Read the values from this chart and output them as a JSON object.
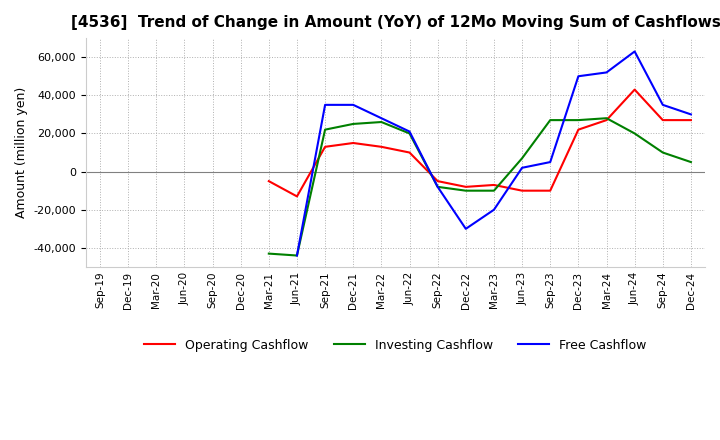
{
  "title": "[4536]  Trend of Change in Amount (YoY) of 12Mo Moving Sum of Cashflows",
  "ylabel": "Amount (million yen)",
  "ylim": [
    -50000,
    70000
  ],
  "yticks": [
    -40000,
    -20000,
    0,
    20000,
    40000,
    60000
  ],
  "x_labels": [
    "Sep-19",
    "Dec-19",
    "Mar-20",
    "Jun-20",
    "Sep-20",
    "Dec-20",
    "Mar-21",
    "Jun-21",
    "Sep-21",
    "Dec-21",
    "Mar-22",
    "Jun-22",
    "Sep-22",
    "Dec-22",
    "Mar-23",
    "Jun-23",
    "Sep-23",
    "Dec-23",
    "Mar-24",
    "Jun-24",
    "Sep-24",
    "Dec-24"
  ],
  "operating": [
    null,
    null,
    null,
    null,
    null,
    null,
    -5000,
    -13000,
    13000,
    15000,
    13000,
    10000,
    -5000,
    -8000,
    -7000,
    -10000,
    -10000,
    22000,
    27000,
    43000,
    27000,
    27000
  ],
  "investing": [
    null,
    null,
    null,
    null,
    null,
    null,
    -43000,
    -44000,
    22000,
    25000,
    26000,
    20000,
    -8000,
    -10000,
    -10000,
    7000,
    27000,
    27000,
    28000,
    20000,
    10000,
    5000
  ],
  "free": [
    null,
    null,
    null,
    null,
    null,
    null,
    null,
    -44000,
    35000,
    35000,
    28000,
    21000,
    -8000,
    -30000,
    -20000,
    2000,
    5000,
    50000,
    52000,
    63000,
    35000,
    30000
  ],
  "operating_color": "#ff0000",
  "investing_color": "#008000",
  "free_color": "#0000ff",
  "background_color": "#ffffff",
  "grid_color": "#b0b0b0",
  "grid_style": "dotted"
}
